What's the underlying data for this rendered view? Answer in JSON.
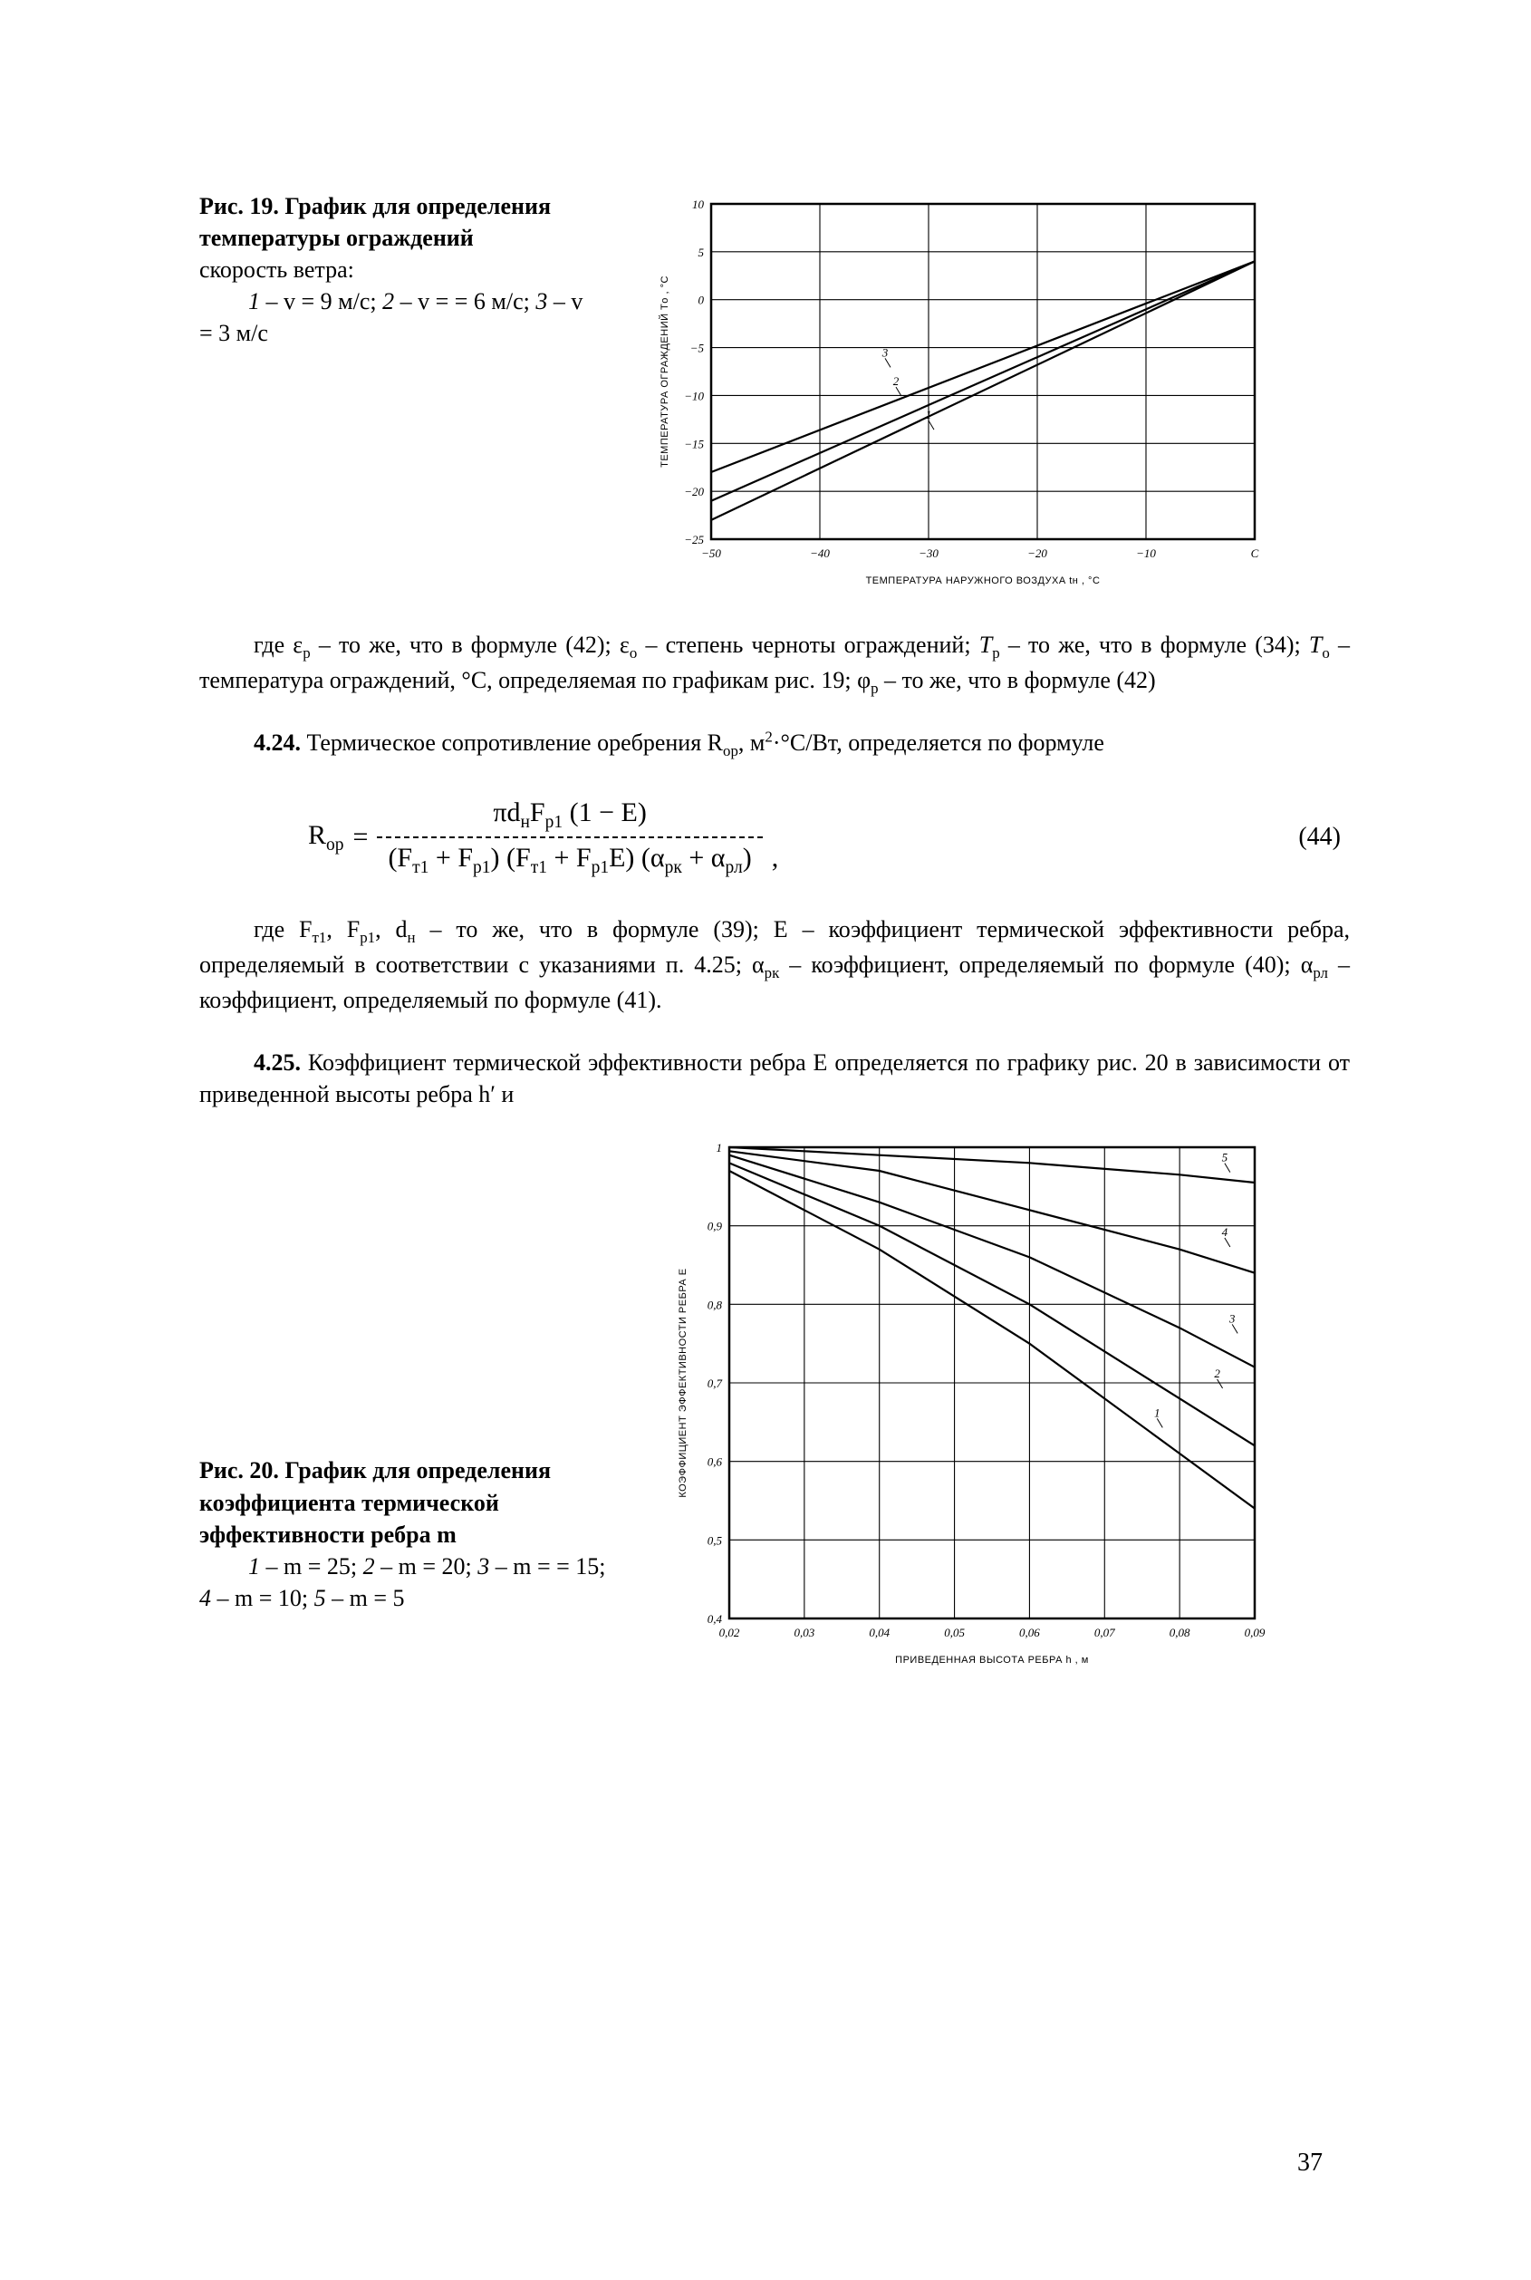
{
  "page_number": "37",
  "background_color": "#ffffff",
  "text_color": "#000000",
  "fig19": {
    "caption_title": "Рис. 19. График для определения температуры ограждений",
    "caption_sub1": "скорость ветра:",
    "caption_sub2_html": "<i>1</i> – v = 9 м/с; <i>2</i> – v = = 6 м/с; <i>3</i> – v = 3 м/с",
    "chart": {
      "type": "line",
      "xlim": [
        -50,
        0
      ],
      "xtick_step": 10,
      "ylim": [
        -25,
        10
      ],
      "ytick_step": 5,
      "x_ticks": [
        "−50",
        "−40",
        "−30",
        "−20",
        "−10",
        "С"
      ],
      "y_ticks": [
        "−25",
        "−20",
        "−15",
        "−10",
        "−5",
        "0",
        "5",
        "10"
      ],
      "x_axis_label": "ТЕМПЕРАТУРА НАРУЖНОГО ВОЗДУХА  tн , °С",
      "y_axis_label": "ТЕМПЕРАТУРА ОГРАЖДЕНИЙ  Tо , °С",
      "grid_color": "#000000",
      "line_color": "#000000",
      "line_width": 2.2,
      "background_color": "#ffffff",
      "series": [
        {
          "label": "1",
          "points": [
            [
              -50,
              -23
            ],
            [
              0,
              4
            ]
          ],
          "label_at": [
            -30,
            -13
          ]
        },
        {
          "label": "2",
          "points": [
            [
              -50,
              -21
            ],
            [
              0,
              4
            ]
          ],
          "label_at": [
            -33,
            -9.5
          ]
        },
        {
          "label": "3",
          "points": [
            [
              -50,
              -18
            ],
            [
              0,
              4
            ]
          ],
          "label_at": [
            -34,
            -6.5
          ]
        }
      ]
    }
  },
  "para1_html": "где ε<span class=\"subsc\">р</span> – то же, что в формуле (42); ε<span class=\"subsc\">о</span> – степень черноты ограждений; <i>T</i><span class=\"subsc\">р</span> – то же, что в формуле (34); <i>T</i><span class=\"subsc\">о</span> – температура ограждений, °С, определяемая по графикам рис. 19; φ<span class=\"subsc\">р</span> – то же, что в формуле (42)",
  "sec424_html": "<b>4.24.</b> Термическое сопротивление оребрения R<span class=\"subsc\">ор</span>, м<span class=\"supsc\">2</span>·°С/Вт, определяется по формуле",
  "equation44": {
    "lhs": "R",
    "lhs_sub": "ор",
    "num_html": "πd<span class=\"subsc\">н</span>F<span class=\"subsc\">р1</span> (1 − E)",
    "den_html": "(F<span class=\"subsc\">т1</span> + F<span class=\"subsc\">р1</span>) (F<span class=\"subsc\">т1</span> + F<span class=\"subsc\">р1</span>E) (α<span class=\"subsc\">рк</span> + α<span class=\"subsc\">рл</span>)",
    "suffix": ",",
    "number": "(44)"
  },
  "para2_html": "где F<span class=\"subsc\">т1</span>, F<span class=\"subsc\">р1</span>, d<span class=\"subsc\">н</span> – то же, что в формуле (39); E – коэффициент термической эффективности ребра, определяемый в соответствии с указаниями п. 4.25; α<span class=\"subsc\">рк</span> – коэффициент, определяемый по формуле (40); α<span class=\"subsc\">рл</span> – коэффициент, определяемый по формуле (41).",
  "sec425_html": "<b>4.25.</b> Коэффициент термической эффективности ребра E определяется по графику рис. 20 в зависимости от приведенной высоты ребра h′ и",
  "fig20": {
    "caption_title": "Рис. 20. График для определения коэффициента термической эффективности ребра  m",
    "caption_sub_html": "<i>1</i> – m = 25; <i>2</i> – m = 20; <i>3</i> – m = = 15; <i>4</i> – m = 10; <i>5</i> – m = 5",
    "chart": {
      "type": "line",
      "xlim": [
        0.02,
        0.09
      ],
      "xtick_step": 0.01,
      "ylim": [
        0.4,
        1.0
      ],
      "ytick_step": 0.1,
      "x_ticks": [
        "0,02",
        "0,03",
        "0,04",
        "0,05",
        "0,06",
        "0,07",
        "0,08",
        "0,09"
      ],
      "y_ticks": [
        "0,4",
        "0,5",
        "0,6",
        "0,7",
        "0,8",
        "0,9",
        "1"
      ],
      "x_axis_label": "ПРИВЕДЕННАЯ ВЫСОТА РЕБРА  h , м",
      "y_axis_label": "КОЭФФИЦИЕНТ ЭФФЕКТИВНОСТИ РЕБРА  E",
      "grid_color": "#000000",
      "line_color": "#000000",
      "line_width": 2.2,
      "background_color": "#ffffff",
      "series": [
        {
          "label": "1",
          "points": [
            [
              0.02,
              0.97
            ],
            [
              0.04,
              0.87
            ],
            [
              0.06,
              0.75
            ],
            [
              0.08,
              0.61
            ],
            [
              0.09,
              0.54
            ]
          ],
          "label_at": [
            0.077,
            0.65
          ]
        },
        {
          "label": "2",
          "points": [
            [
              0.02,
              0.98
            ],
            [
              0.04,
              0.9
            ],
            [
              0.06,
              0.8
            ],
            [
              0.08,
              0.68
            ],
            [
              0.09,
              0.62
            ]
          ],
          "label_at": [
            0.085,
            0.7
          ]
        },
        {
          "label": "3",
          "points": [
            [
              0.02,
              0.99
            ],
            [
              0.04,
              0.93
            ],
            [
              0.06,
              0.86
            ],
            [
              0.08,
              0.77
            ],
            [
              0.09,
              0.72
            ]
          ],
          "label_at": [
            0.087,
            0.77
          ]
        },
        {
          "label": "4",
          "points": [
            [
              0.02,
              0.995
            ],
            [
              0.04,
              0.97
            ],
            [
              0.06,
              0.92
            ],
            [
              0.08,
              0.87
            ],
            [
              0.09,
              0.84
            ]
          ],
          "label_at": [
            0.086,
            0.88
          ]
        },
        {
          "label": "5",
          "points": [
            [
              0.02,
              1.0
            ],
            [
              0.04,
              0.99
            ],
            [
              0.06,
              0.98
            ],
            [
              0.08,
              0.965
            ],
            [
              0.09,
              0.955
            ]
          ],
          "label_at": [
            0.086,
            0.975
          ]
        }
      ]
    }
  }
}
